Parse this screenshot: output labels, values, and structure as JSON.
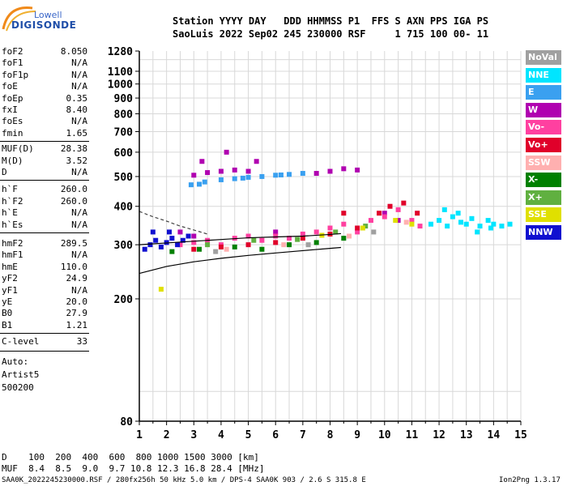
{
  "logo": {
    "line1": "Lowell",
    "line2": "DIGISONDE"
  },
  "header": {
    "line1": "Station YYYY DAY   DDD HHMMSS P1  FFS S AXN PPS IGA PS",
    "line2": "SaoLuis 2022 Sep02 245 230000 RSF     1 715 100 00- 11"
  },
  "params_group1": [
    {
      "name": "foF2",
      "value": "8.050"
    },
    {
      "name": "foF1",
      "value": "N/A"
    },
    {
      "name": "foF1p",
      "value": "N/A"
    },
    {
      "name": "foE",
      "value": "N/A"
    },
    {
      "name": "foEp",
      "value": "0.35"
    },
    {
      "name": "fxI",
      "value": "8.40"
    },
    {
      "name": "foEs",
      "value": "N/A"
    },
    {
      "name": "fmin",
      "value": "1.65"
    }
  ],
  "params_group2": [
    {
      "name": "MUF(D)",
      "value": "28.38"
    },
    {
      "name": "M(D)",
      "value": "3.52"
    },
    {
      "name": "D",
      "value": "N/A"
    }
  ],
  "params_group3": [
    {
      "name": "h`F",
      "value": "260.0"
    },
    {
      "name": "h`F2",
      "value": "260.0"
    },
    {
      "name": "h`E",
      "value": "N/A"
    },
    {
      "name": "h`Es",
      "value": "N/A"
    }
  ],
  "params_group4": [
    {
      "name": "hmF2",
      "value": "289.5"
    },
    {
      "name": "hmF1",
      "value": "N/A"
    },
    {
      "name": "hmE",
      "value": "110.0"
    },
    {
      "name": "yF2",
      "value": "24.9"
    },
    {
      "name": "yF1",
      "value": "N/A"
    },
    {
      "name": "yE",
      "value": "20.0"
    },
    {
      "name": "B0",
      "value": "27.9"
    },
    {
      "name": "B1",
      "value": "1.21"
    }
  ],
  "c_level": {
    "name": "C-level",
    "value": "33"
  },
  "auto_block": {
    "line1": "Auto:",
    "line2": "Artist5",
    "line3": "500200"
  },
  "legend": [
    {
      "label": "NoVal",
      "color": "#a0a0a0"
    },
    {
      "label": "NNE",
      "color": "#00e5ff"
    },
    {
      "label": "E",
      "color": "#3aa0f0"
    },
    {
      "label": "W",
      "color": "#b000b0"
    },
    {
      "label": "Vo-",
      "color": "#ff40a0"
    },
    {
      "label": "Vo+",
      "color": "#e0002a"
    },
    {
      "label": "SSW",
      "color": "#ffb0b0"
    },
    {
      "label": "X-",
      "color": "#008000"
    },
    {
      "label": "X+",
      "color": "#60b040"
    },
    {
      "label": "SSE",
      "color": "#e0e000"
    },
    {
      "label": "NNW",
      "color": "#1010d0"
    }
  ],
  "bottom": {
    "d_row": "D    100  200  400  600  800 1000 1500 3000 [km]",
    "muf_row": "MUF  8.4  8.5  9.0  9.7 10.8 12.3 16.8 28.4 [MHz]"
  },
  "footer": {
    "left": "SAA0K_2022245230000.RSF / 280fx256h 50 kHz 5.0 km / DPS-4 SAA0K 903 / 2.6 S 315.8 E",
    "right": "Ion2Png 1.3.17"
  },
  "chart_data": {
    "type": "scatter",
    "title": "",
    "xlabel": "",
    "ylabel": "",
    "xlim": [
      1,
      15
    ],
    "x_ticks": [
      1,
      2,
      3,
      4,
      5,
      6,
      7,
      8,
      9,
      10,
      11,
      12,
      13,
      14,
      15
    ],
    "y_scale": "log",
    "ylim": [
      80,
      1280
    ],
    "y_ticks": [
      80,
      200,
      300,
      400,
      500,
      600,
      700,
      800,
      900,
      1000,
      1100,
      1280
    ],
    "grid": true,
    "series": [
      {
        "color": "#00e5ff",
        "points": [
          [
            11.7,
            350
          ],
          [
            12.0,
            360
          ],
          [
            12.3,
            345
          ],
          [
            12.5,
            370
          ],
          [
            12.8,
            355
          ],
          [
            13.0,
            350
          ],
          [
            13.2,
            365
          ],
          [
            13.5,
            345
          ],
          [
            13.8,
            360
          ],
          [
            14.0,
            350
          ],
          [
            14.3,
            345
          ],
          [
            14.6,
            350
          ],
          [
            12.2,
            390
          ],
          [
            12.7,
            380
          ],
          [
            13.4,
            330
          ],
          [
            13.9,
            340
          ]
        ]
      },
      {
        "color": "#3aa0f0",
        "points": [
          [
            2.9,
            470
          ],
          [
            3.4,
            480
          ],
          [
            4.0,
            488
          ],
          [
            4.5,
            492
          ],
          [
            5.0,
            497
          ],
          [
            5.5,
            500
          ],
          [
            6.0,
            505
          ],
          [
            6.5,
            508
          ],
          [
            7.0,
            512
          ],
          [
            3.2,
            472
          ],
          [
            4.8,
            494
          ],
          [
            6.2,
            506
          ]
        ]
      },
      {
        "color": "#b000b0",
        "points": [
          [
            3.0,
            505
          ],
          [
            3.5,
            515
          ],
          [
            4.0,
            520
          ],
          [
            4.5,
            525
          ],
          [
            5.0,
            520
          ],
          [
            7.5,
            512
          ],
          [
            8.0,
            520
          ],
          [
            8.5,
            530
          ],
          [
            9.0,
            525
          ],
          [
            3.3,
            560
          ],
          [
            4.2,
            600
          ],
          [
            5.3,
            560
          ],
          [
            2.5,
            330
          ],
          [
            3.0,
            320
          ],
          [
            6.0,
            330
          ],
          [
            10.0,
            380
          ],
          [
            10.5,
            360
          ]
        ]
      },
      {
        "color": "#ff40a0",
        "points": [
          [
            2.5,
            300
          ],
          [
            3.0,
            305
          ],
          [
            3.5,
            310
          ],
          [
            4.0,
            300
          ],
          [
            4.5,
            315
          ],
          [
            5.0,
            320
          ],
          [
            5.5,
            310
          ],
          [
            6.0,
            320
          ],
          [
            6.5,
            315
          ],
          [
            7.0,
            325
          ],
          [
            7.5,
            330
          ],
          [
            8.0,
            340
          ],
          [
            8.5,
            350
          ],
          [
            9.0,
            330
          ],
          [
            9.5,
            360
          ],
          [
            10.0,
            370
          ],
          [
            10.5,
            390
          ],
          [
            11.0,
            360
          ],
          [
            11.3,
            345
          ]
        ]
      },
      {
        "color": "#e0002a",
        "points": [
          [
            3.0,
            290
          ],
          [
            4.0,
            295
          ],
          [
            5.0,
            300
          ],
          [
            6.0,
            305
          ],
          [
            7.0,
            315
          ],
          [
            8.0,
            325
          ],
          [
            9.0,
            340
          ],
          [
            9.8,
            380
          ],
          [
            10.2,
            400
          ],
          [
            10.7,
            410
          ],
          [
            11.2,
            380
          ],
          [
            8.5,
            380
          ]
        ]
      },
      {
        "color": "#1010d0",
        "points": [
          [
            1.2,
            290
          ],
          [
            1.4,
            300
          ],
          [
            1.6,
            310
          ],
          [
            1.8,
            295
          ],
          [
            2.0,
            305
          ],
          [
            2.2,
            315
          ],
          [
            2.4,
            300
          ],
          [
            2.6,
            310
          ],
          [
            2.8,
            320
          ],
          [
            1.5,
            330
          ],
          [
            2.1,
            330
          ]
        ]
      },
      {
        "color": "#008000",
        "points": [
          [
            2.2,
            285
          ],
          [
            3.2,
            290
          ],
          [
            4.5,
            295
          ],
          [
            5.5,
            290
          ],
          [
            6.5,
            300
          ],
          [
            7.5,
            305
          ],
          [
            8.5,
            315
          ]
        ]
      },
      {
        "color": "#60b040",
        "points": [
          [
            3.5,
            300
          ],
          [
            5.2,
            310
          ],
          [
            6.8,
            312
          ],
          [
            8.2,
            330
          ],
          [
            9.3,
            345
          ]
        ]
      },
      {
        "color": "#e0e000",
        "points": [
          [
            1.8,
            215
          ],
          [
            9.2,
            340
          ],
          [
            10.4,
            360
          ],
          [
            11.0,
            350
          ],
          [
            7.7,
            322
          ]
        ]
      },
      {
        "color": "#ffb0b0",
        "points": [
          [
            4.2,
            290
          ],
          [
            6.3,
            300
          ],
          [
            8.7,
            320
          ],
          [
            10.8,
            355
          ]
        ]
      },
      {
        "color": "#a0a0a0",
        "points": [
          [
            3.8,
            285
          ],
          [
            7.2,
            300
          ],
          [
            9.6,
            330
          ]
        ]
      }
    ],
    "lines": [
      {
        "points": [
          [
            1.0,
            242
          ],
          [
            2.0,
            255
          ],
          [
            3.0,
            264
          ],
          [
            4.0,
            271
          ],
          [
            5.0,
            277
          ],
          [
            6.0,
            282
          ],
          [
            7.0,
            287
          ],
          [
            8.0,
            292
          ],
          [
            8.4,
            294
          ]
        ]
      },
      {
        "points": [
          [
            1.0,
            300
          ],
          [
            2.0,
            304
          ],
          [
            3.0,
            308
          ],
          [
            4.0,
            312
          ],
          [
            5.0,
            316
          ],
          [
            6.0,
            318
          ],
          [
            7.0,
            320
          ],
          [
            8.0,
            324
          ],
          [
            8.4,
            326
          ]
        ]
      }
    ],
    "dashed_lines": [
      {
        "points": [
          [
            1.0,
            385
          ],
          [
            1.5,
            370
          ],
          [
            2.0,
            358
          ],
          [
            2.5,
            345
          ],
          [
            3.0,
            335
          ],
          [
            3.5,
            325
          ]
        ]
      }
    ]
  }
}
